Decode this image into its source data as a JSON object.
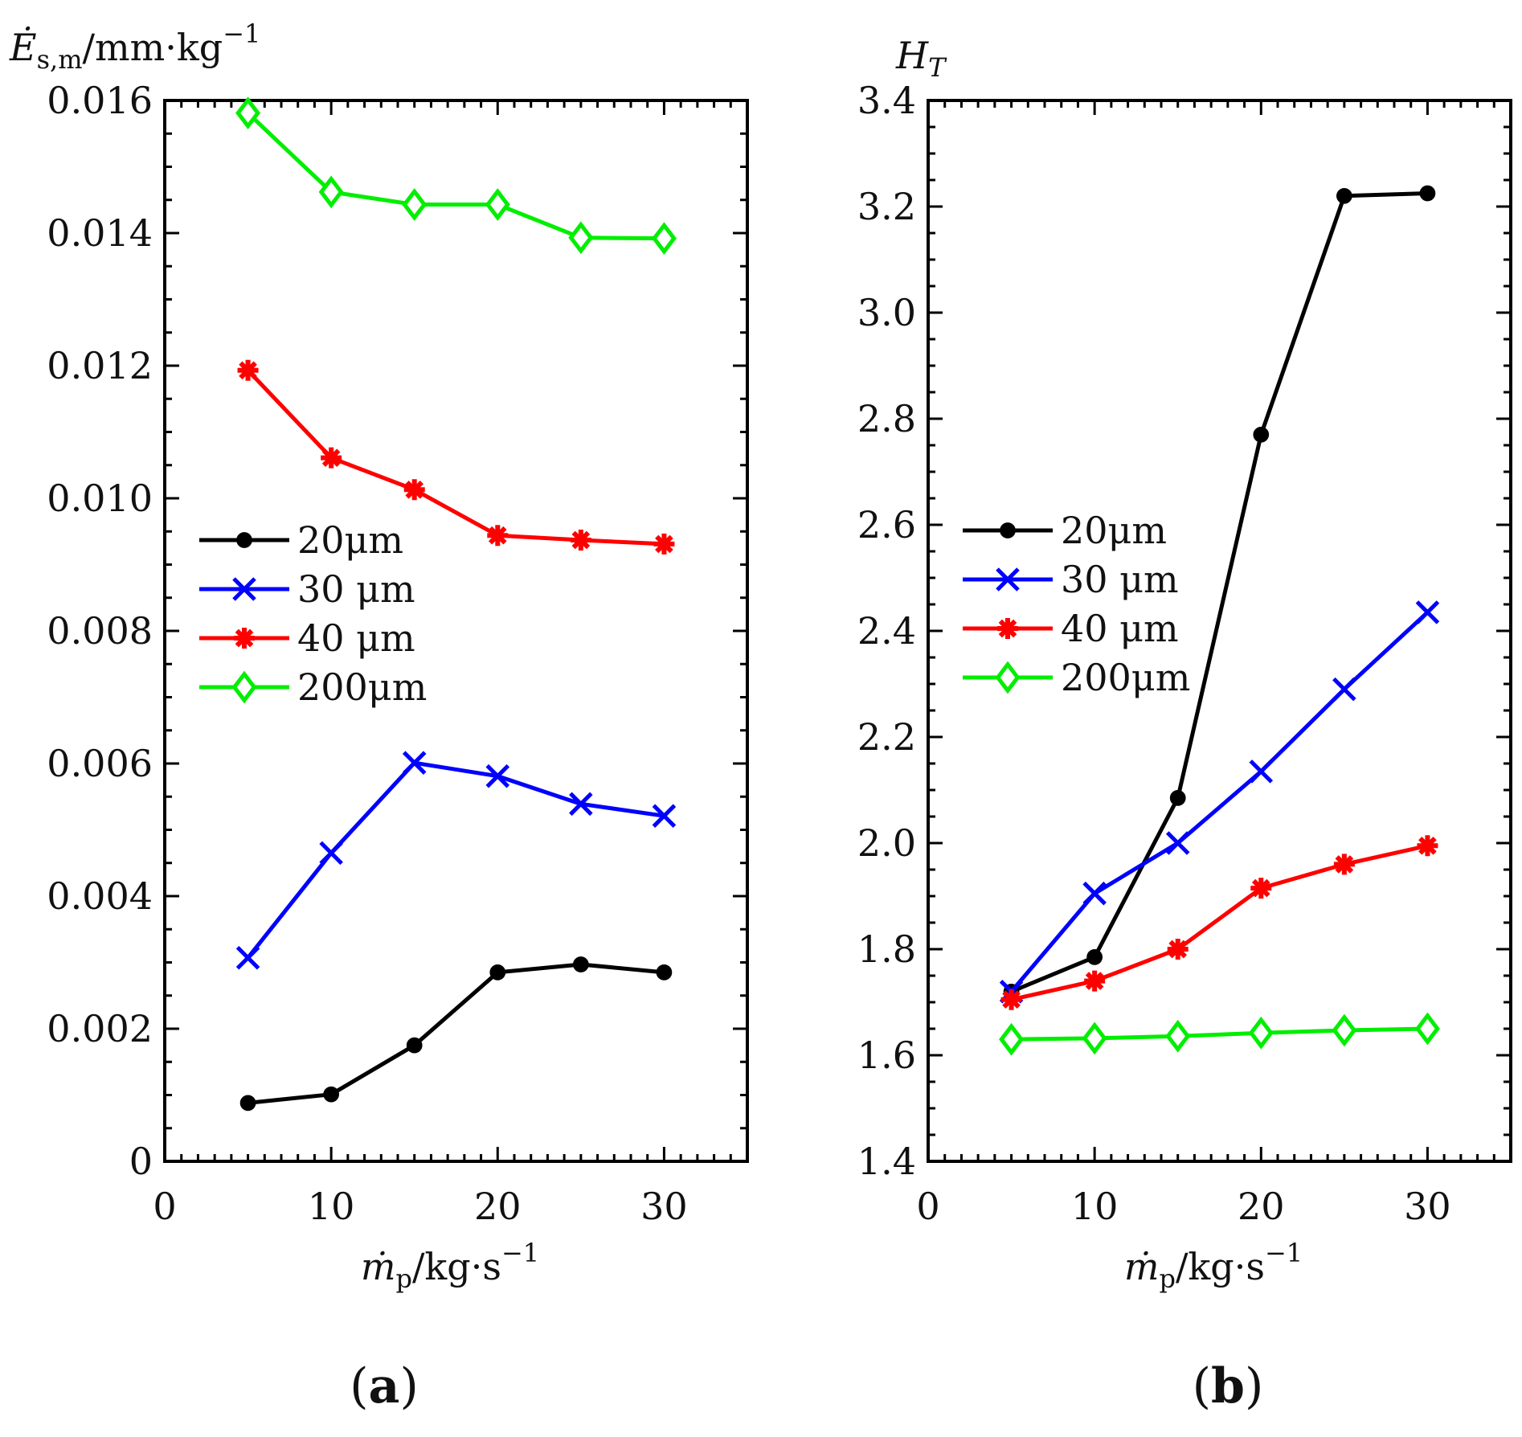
{
  "chart_data": [
    {
      "type": "line",
      "panel_label": "(a)",
      "panel_letter": "a",
      "ylabel": {
        "base": "Ė",
        "sub": "s,m",
        "unit": "/mm·kg",
        "sup": "−1"
      },
      "xlabel": {
        "base": "ṁ",
        "sub": "p",
        "unit": "/kg·s",
        "sup": "−1"
      },
      "xlim": [
        0,
        35
      ],
      "ylim": [
        0,
        0.016
      ],
      "xticks": [
        0,
        10,
        20,
        30
      ],
      "xtick_labels": [
        "0",
        "10",
        "20",
        "30"
      ],
      "yticks": [
        0,
        0.002,
        0.004,
        0.006,
        0.008,
        0.01,
        0.012,
        0.014,
        0.016
      ],
      "ytick_labels": [
        "0",
        "0.002",
        "0.004",
        "0.006",
        "0.008",
        "0.010",
        "0.012",
        "0.014",
        "0.016"
      ],
      "grid": false,
      "legend_position": "center-left",
      "x": [
        5,
        10,
        15,
        20,
        25,
        30
      ],
      "series": [
        {
          "name": "20μm",
          "color": "#000000",
          "marker": "dot",
          "values": [
            0.00088,
            0.00101,
            0.00175,
            0.00285,
            0.00297,
            0.00285
          ]
        },
        {
          "name": "30 μm",
          "color": "#0000ff",
          "marker": "x",
          "values": [
            0.00307,
            0.00465,
            0.00601,
            0.00581,
            0.00539,
            0.00521
          ]
        },
        {
          "name": "40 μm",
          "color": "#ff0000",
          "marker": "star",
          "values": [
            0.01193,
            0.01061,
            0.01013,
            0.00944,
            0.00937,
            0.00931
          ]
        },
        {
          "name": "200μm",
          "color": "#00ee00",
          "marker": "diamond",
          "values": [
            0.01581,
            0.01462,
            0.01443,
            0.01443,
            0.01393,
            0.01392
          ]
        }
      ]
    },
    {
      "type": "line",
      "panel_label": "(b)",
      "panel_letter": "b",
      "ylabel": {
        "base": "H",
        "sub": "T",
        "unit": "",
        "sup": ""
      },
      "xlabel": {
        "base": "ṁ",
        "sub": "p",
        "unit": "/kg·s",
        "sup": "−1"
      },
      "xlim": [
        0,
        35
      ],
      "ylim": [
        1.4,
        3.4
      ],
      "xticks": [
        0,
        10,
        20,
        30
      ],
      "xtick_labels": [
        "0",
        "10",
        "20",
        "30"
      ],
      "yticks": [
        1.4,
        1.6,
        1.8,
        2.0,
        2.2,
        2.4,
        2.6,
        2.8,
        3.0,
        3.2,
        3.4
      ],
      "ytick_labels": [
        "1.4",
        "1.6",
        "1.8",
        "2.0",
        "2.2",
        "2.4",
        "2.6",
        "2.8",
        "3.0",
        "3.2",
        "3.4"
      ],
      "grid": false,
      "legend_position": "center-left",
      "x": [
        5,
        10,
        15,
        20,
        25,
        30
      ],
      "series": [
        {
          "name": "20μm",
          "color": "#000000",
          "marker": "dot",
          "values": [
            1.72,
            1.785,
            2.085,
            2.77,
            3.22,
            3.225
          ]
        },
        {
          "name": "30 μm",
          "color": "#0000ff",
          "marker": "x",
          "values": [
            1.72,
            1.905,
            2.0,
            2.135,
            2.29,
            2.435
          ]
        },
        {
          "name": "40 μm",
          "color": "#ff0000",
          "marker": "star",
          "values": [
            1.705,
            1.74,
            1.8,
            1.915,
            1.96,
            1.995
          ]
        },
        {
          "name": "200μm",
          "color": "#00ee00",
          "marker": "diamond",
          "values": [
            1.63,
            1.632,
            1.636,
            1.642,
            1.647,
            1.65
          ]
        }
      ]
    }
  ]
}
